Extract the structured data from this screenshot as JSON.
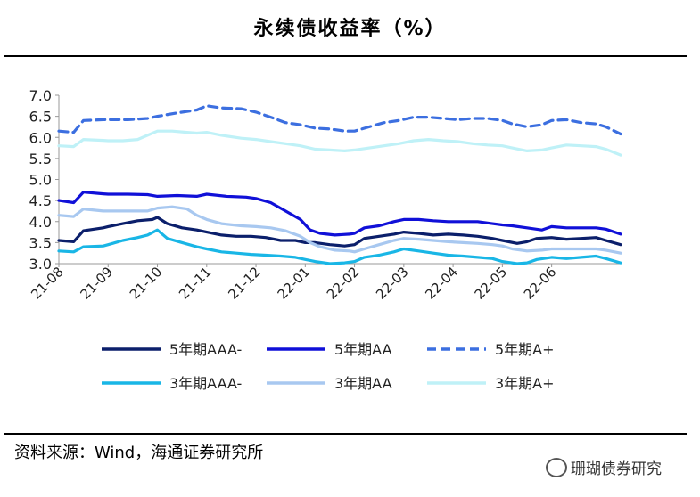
{
  "header": {
    "title": "永续债收益率（%）"
  },
  "footer": {
    "source": "资料来源：Wind，海通证券研究所",
    "watermark": "珊瑚债券研究"
  },
  "chart_data": {
    "type": "line",
    "title": "永续债收益率（%）",
    "xlabel": "",
    "ylabel": "",
    "ylim": [
      3.0,
      7.0
    ],
    "yticks": [
      "7.0",
      "6.5",
      "6.0",
      "5.5",
      "5.0",
      "4.5",
      "4.0",
      "3.5",
      "3.0"
    ],
    "ytick_values": [
      7.0,
      6.5,
      6.0,
      5.5,
      5.0,
      4.5,
      4.0,
      3.5,
      3.0
    ],
    "x_months": [
      "21-08",
      "21-09",
      "21-10",
      "21-11",
      "21-12",
      "22-01",
      "22-02",
      "22-03",
      "22-04",
      "22-05",
      "22-06"
    ],
    "x_positions": [
      0,
      1,
      2,
      3,
      4,
      5,
      6,
      7,
      8,
      9,
      10
    ],
    "xlim": [
      0,
      11.4
    ],
    "grid": false,
    "legend_position": "bottom",
    "series": [
      {
        "name": "5年期AAA-",
        "color": "#0b1f6b",
        "dash": false,
        "x": [
          0,
          0.3,
          0.5,
          0.9,
          1.0,
          1.3,
          1.6,
          1.9,
          2.0,
          2.2,
          2.5,
          2.8,
          3.0,
          3.3,
          3.6,
          3.9,
          4.2,
          4.5,
          4.8,
          5.0,
          5.2,
          5.5,
          5.8,
          6.0,
          6.2,
          6.5,
          6.8,
          7.0,
          7.3,
          7.6,
          7.9,
          8.2,
          8.5,
          8.8,
          9.0,
          9.3,
          9.5,
          9.7,
          10.0,
          10.3,
          10.6,
          10.9,
          11.1,
          11.4
        ],
        "y": [
          3.55,
          3.52,
          3.78,
          3.85,
          3.88,
          3.95,
          4.02,
          4.05,
          4.1,
          3.95,
          3.85,
          3.8,
          3.75,
          3.68,
          3.65,
          3.65,
          3.62,
          3.55,
          3.55,
          3.5,
          3.5,
          3.45,
          3.42,
          3.45,
          3.6,
          3.65,
          3.7,
          3.75,
          3.72,
          3.68,
          3.7,
          3.68,
          3.65,
          3.6,
          3.55,
          3.48,
          3.52,
          3.6,
          3.62,
          3.58,
          3.6,
          3.62,
          3.55,
          3.45
        ]
      },
      {
        "name": "5年期AA",
        "color": "#1010d8",
        "dash": false,
        "x": [
          0,
          0.3,
          0.5,
          0.9,
          1.0,
          1.4,
          1.8,
          2.0,
          2.4,
          2.8,
          3.0,
          3.4,
          3.8,
          4.0,
          4.3,
          4.6,
          4.9,
          5.1,
          5.3,
          5.6,
          5.9,
          6.0,
          6.2,
          6.5,
          6.8,
          7.0,
          7.3,
          7.6,
          7.9,
          8.2,
          8.5,
          8.8,
          9.0,
          9.2,
          9.5,
          9.8,
          10.0,
          10.3,
          10.6,
          10.9,
          11.1,
          11.4
        ],
        "y": [
          4.5,
          4.45,
          4.7,
          4.66,
          4.65,
          4.65,
          4.64,
          4.6,
          4.62,
          4.6,
          4.65,
          4.6,
          4.58,
          4.55,
          4.45,
          4.25,
          4.05,
          3.8,
          3.72,
          3.68,
          3.7,
          3.72,
          3.85,
          3.9,
          4.0,
          4.05,
          4.05,
          4.02,
          4.0,
          4.0,
          4.0,
          3.95,
          3.92,
          3.9,
          3.85,
          3.8,
          3.88,
          3.85,
          3.85,
          3.85,
          3.82,
          3.7
        ]
      },
      {
        "name": "5年期A+",
        "color": "#3c6fe0",
        "dash": true,
        "x": [
          0,
          0.3,
          0.5,
          0.9,
          1.0,
          1.4,
          1.8,
          2.0,
          2.4,
          2.8,
          3.0,
          3.3,
          3.7,
          4.0,
          4.3,
          4.6,
          4.9,
          5.2,
          5.5,
          5.8,
          6.0,
          6.3,
          6.6,
          6.9,
          7.2,
          7.5,
          7.8,
          8.1,
          8.4,
          8.7,
          9.0,
          9.2,
          9.5,
          9.8,
          10.0,
          10.3,
          10.6,
          10.9,
          11.1,
          11.4
        ],
        "y": [
          6.15,
          6.12,
          6.4,
          6.42,
          6.42,
          6.42,
          6.45,
          6.5,
          6.58,
          6.65,
          6.75,
          6.7,
          6.68,
          6.6,
          6.48,
          6.35,
          6.3,
          6.22,
          6.2,
          6.15,
          6.15,
          6.25,
          6.35,
          6.4,
          6.48,
          6.48,
          6.45,
          6.42,
          6.45,
          6.45,
          6.4,
          6.32,
          6.25,
          6.3,
          6.4,
          6.42,
          6.35,
          6.32,
          6.25,
          6.08
        ]
      },
      {
        "name": "3年期AAA-",
        "color": "#19b6e6",
        "dash": false,
        "x": [
          0,
          0.3,
          0.5,
          0.9,
          1.0,
          1.3,
          1.6,
          1.8,
          2.0,
          2.2,
          2.5,
          2.8,
          3.0,
          3.3,
          3.6,
          3.9,
          4.2,
          4.5,
          4.8,
          5.0,
          5.2,
          5.5,
          5.8,
          6.0,
          6.2,
          6.5,
          6.8,
          7.0,
          7.3,
          7.6,
          7.9,
          8.2,
          8.5,
          8.8,
          9.0,
          9.3,
          9.5,
          9.7,
          10.0,
          10.3,
          10.6,
          10.9,
          11.1,
          11.4
        ],
        "y": [
          3.3,
          3.28,
          3.4,
          3.42,
          3.45,
          3.55,
          3.62,
          3.68,
          3.8,
          3.6,
          3.5,
          3.4,
          3.35,
          3.28,
          3.25,
          3.22,
          3.2,
          3.18,
          3.15,
          3.1,
          3.05,
          3.0,
          3.02,
          3.05,
          3.15,
          3.2,
          3.28,
          3.35,
          3.3,
          3.25,
          3.2,
          3.18,
          3.15,
          3.12,
          3.05,
          3.0,
          3.02,
          3.1,
          3.15,
          3.12,
          3.15,
          3.18,
          3.12,
          3.02
        ]
      },
      {
        "name": "3年期AA",
        "color": "#a8c8f0",
        "dash": false,
        "x": [
          0,
          0.3,
          0.5,
          0.9,
          1.0,
          1.4,
          1.8,
          2.0,
          2.3,
          2.6,
          2.8,
          3.0,
          3.3,
          3.7,
          4.0,
          4.3,
          4.6,
          4.9,
          5.1,
          5.3,
          5.6,
          5.9,
          6.0,
          6.2,
          6.5,
          6.8,
          7.0,
          7.3,
          7.6,
          7.9,
          8.2,
          8.5,
          8.8,
          9.0,
          9.2,
          9.5,
          9.8,
          10.0,
          10.3,
          10.6,
          10.9,
          11.1,
          11.4
        ],
        "y": [
          4.15,
          4.12,
          4.3,
          4.25,
          4.25,
          4.25,
          4.25,
          4.32,
          4.35,
          4.3,
          4.15,
          4.05,
          3.95,
          3.9,
          3.88,
          3.85,
          3.78,
          3.65,
          3.5,
          3.4,
          3.32,
          3.3,
          3.28,
          3.35,
          3.45,
          3.55,
          3.6,
          3.58,
          3.55,
          3.52,
          3.5,
          3.48,
          3.45,
          3.42,
          3.35,
          3.3,
          3.32,
          3.35,
          3.35,
          3.35,
          3.35,
          3.32,
          3.25
        ]
      },
      {
        "name": "3年期A+",
        "color": "#bff1f7",
        "dash": false,
        "x": [
          0,
          0.3,
          0.5,
          0.9,
          1.0,
          1.3,
          1.6,
          1.8,
          2.0,
          2.3,
          2.6,
          2.8,
          3.0,
          3.3,
          3.7,
          4.0,
          4.3,
          4.6,
          4.9,
          5.2,
          5.5,
          5.8,
          6.0,
          6.3,
          6.6,
          6.9,
          7.2,
          7.5,
          7.8,
          8.1,
          8.4,
          8.7,
          9.0,
          9.2,
          9.5,
          9.8,
          10.0,
          10.3,
          10.6,
          10.9,
          11.1,
          11.4
        ],
        "y": [
          5.8,
          5.78,
          5.95,
          5.93,
          5.92,
          5.92,
          5.95,
          6.05,
          6.15,
          6.15,
          6.12,
          6.1,
          6.12,
          6.05,
          5.98,
          5.95,
          5.9,
          5.85,
          5.8,
          5.72,
          5.7,
          5.68,
          5.7,
          5.75,
          5.8,
          5.85,
          5.92,
          5.95,
          5.92,
          5.9,
          5.85,
          5.82,
          5.8,
          5.75,
          5.68,
          5.7,
          5.75,
          5.82,
          5.8,
          5.78,
          5.72,
          5.58
        ]
      }
    ]
  }
}
